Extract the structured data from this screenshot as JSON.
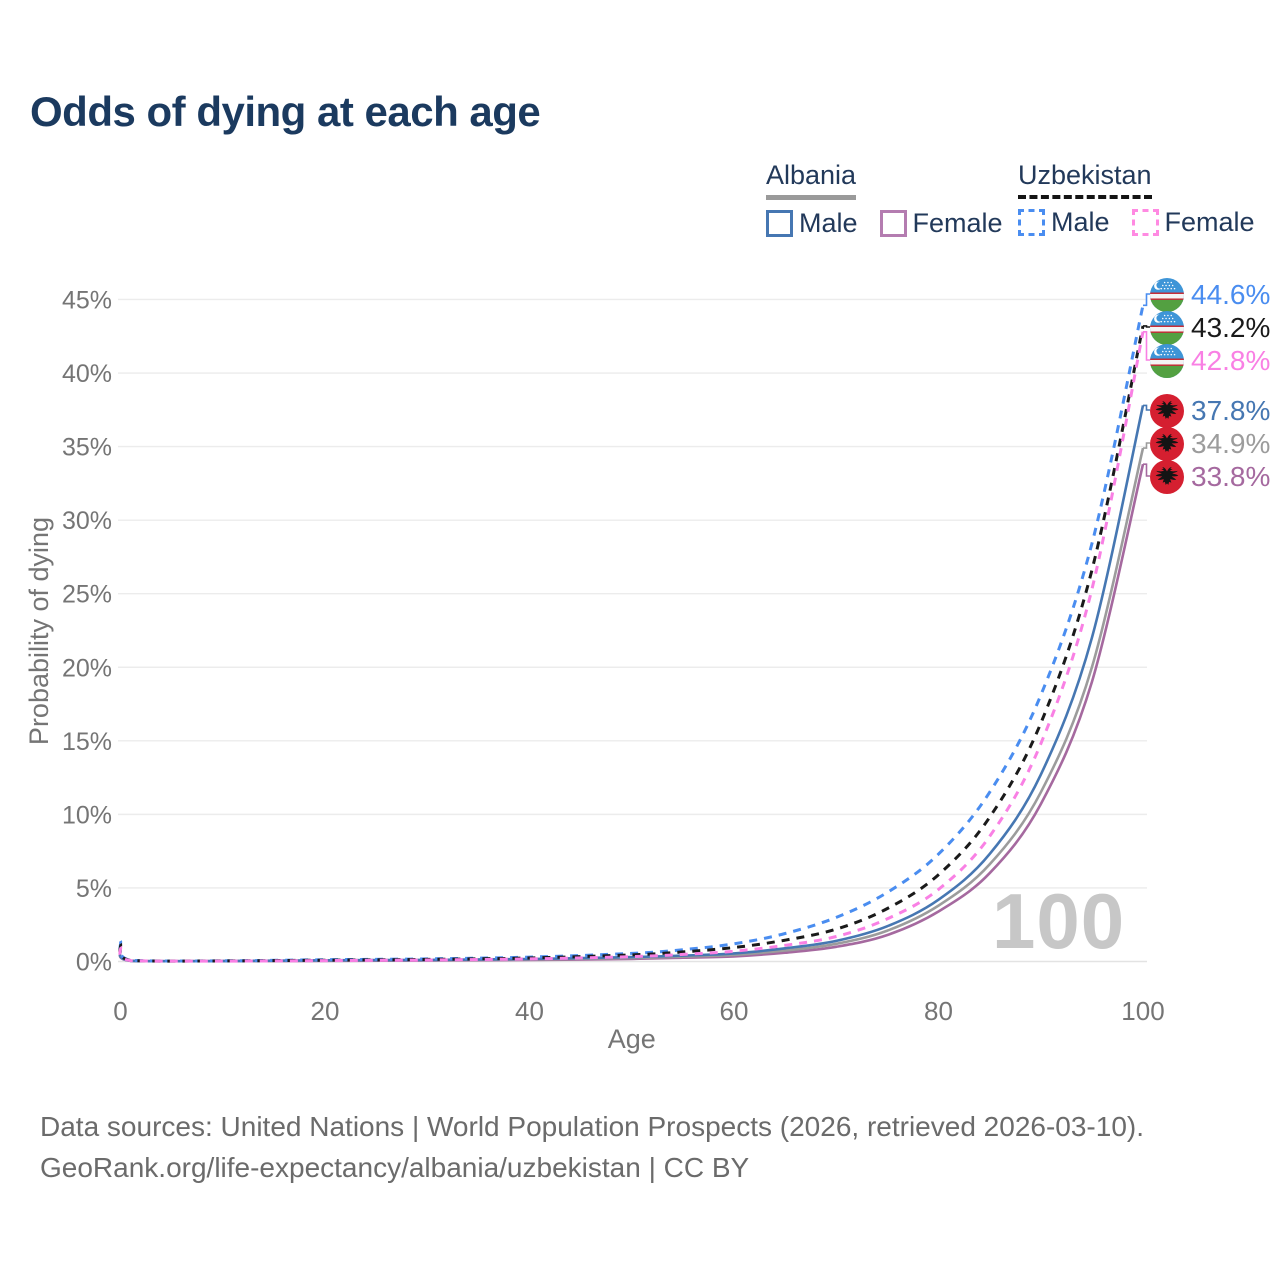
{
  "header": {
    "title": "Odds of dying at each age"
  },
  "legend": {
    "groups": [
      {
        "label": "Albania",
        "line_style": "solid",
        "underline_color": "#9a9a9a",
        "items": [
          {
            "label": "Male",
            "color": "#4677b2"
          },
          {
            "label": "Female",
            "color": "#b47cb0"
          }
        ]
      },
      {
        "label": "Uzbekistan",
        "line_style": "dashed",
        "underline_color": "#141414",
        "items": [
          {
            "label": "Male",
            "color": "#4a8df0"
          },
          {
            "label": "Female",
            "color": "#ff8ae2"
          }
        ]
      }
    ]
  },
  "chart_data": {
    "type": "line",
    "title": "Odds of dying at each age",
    "xlabel": "Age",
    "ylabel": "Probability of dying",
    "x_ticks": [
      "0",
      "20",
      "40",
      "60",
      "80",
      "100"
    ],
    "y_ticks": [
      "0%",
      "5%",
      "10%",
      "15%",
      "20%",
      "25%",
      "30%",
      "35%",
      "40%",
      "45%"
    ],
    "xlim": [
      0,
      100
    ],
    "ylim_pct": [
      0,
      46
    ],
    "grid": "horizontal",
    "age_indicator": "100",
    "ages": [
      0,
      1,
      10,
      20,
      30,
      40,
      50,
      55,
      60,
      65,
      70,
      75,
      80,
      85,
      90,
      95,
      100
    ],
    "series": [
      {
        "name": "Uzbekistan Male",
        "country": "Uzbekistan",
        "sex": "Male",
        "color": "#4a8df0",
        "dash": true,
        "end_label": "44.6%",
        "values": [
          1.4,
          0.08,
          0.05,
          0.12,
          0.18,
          0.3,
          0.55,
          0.8,
          1.2,
          1.9,
          3.0,
          4.7,
          7.3,
          11.5,
          18.1,
          28.4,
          44.6
        ]
      },
      {
        "name": "Uzbekistan Both sexes",
        "country": "Uzbekistan",
        "sex": "Both",
        "color": "#1a1a1a",
        "dash": true,
        "end_label": "43.2%",
        "values": [
          1.2,
          0.07,
          0.04,
          0.09,
          0.14,
          0.24,
          0.45,
          0.65,
          0.95,
          1.45,
          2.2,
          3.6,
          5.9,
          9.8,
          16.2,
          26.6,
          43.2
        ]
      },
      {
        "name": "Uzbekistan Female",
        "country": "Uzbekistan",
        "sex": "Female",
        "color": "#f980e4",
        "dash": true,
        "end_label": "42.8%",
        "values": [
          1.0,
          0.06,
          0.03,
          0.06,
          0.1,
          0.18,
          0.33,
          0.48,
          0.7,
          1.1,
          1.7,
          2.9,
          4.9,
          8.5,
          14.8,
          25.3,
          42.8
        ]
      },
      {
        "name": "Albania Male",
        "country": "Albania",
        "sex": "Male",
        "color": "#4677b2",
        "dash": false,
        "end_label": "37.8%",
        "values": [
          0.85,
          0.05,
          0.03,
          0.08,
          0.11,
          0.17,
          0.3,
          0.4,
          0.55,
          0.9,
          1.4,
          2.4,
          4.2,
          7.3,
          12.7,
          22.0,
          37.8
        ]
      },
      {
        "name": "Albania Both sexes",
        "country": "Albania",
        "sex": "Both",
        "color": "#9c9c9c",
        "dash": false,
        "end_label": "34.9%",
        "values": [
          0.8,
          0.045,
          0.025,
          0.06,
          0.09,
          0.14,
          0.24,
          0.33,
          0.45,
          0.75,
          1.2,
          2.1,
          3.8,
          6.6,
          11.5,
          20.0,
          34.9
        ]
      },
      {
        "name": "Albania Female",
        "country": "Albania",
        "sex": "Female",
        "color": "#a5699f",
        "dash": false,
        "end_label": "33.8%",
        "values": [
          0.75,
          0.04,
          0.02,
          0.04,
          0.06,
          0.1,
          0.18,
          0.26,
          0.35,
          0.6,
          1.0,
          1.8,
          3.4,
          6.0,
          10.7,
          19.0,
          33.8
        ]
      }
    ]
  },
  "footer": {
    "line1": "Data sources: United Nations | World Population Prospects (2026, retrieved 2026-03-10).",
    "line2": "GeoRank.org/life-expectancy/albania/uzbekistan | CC BY"
  }
}
